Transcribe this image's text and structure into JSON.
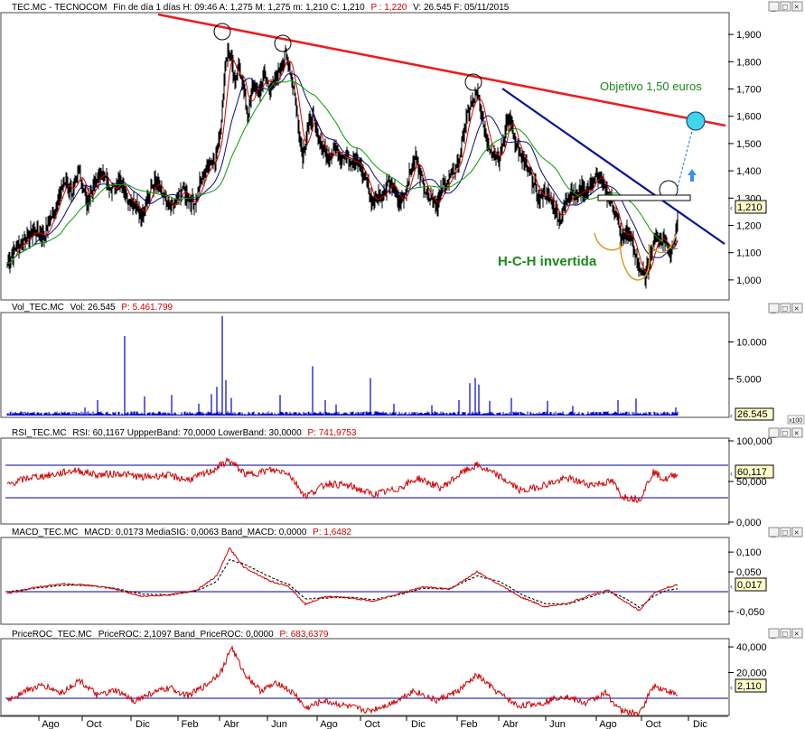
{
  "colors": {
    "background": "#ffffff",
    "price": "#000000",
    "ma_short": "#e00000",
    "ma_mid": "#0a0a80",
    "ma_long": "#00a000",
    "resistance": "#ee1c1c",
    "downtrend": "#0a1496",
    "volume": "#0000cc",
    "indicator": "#d00000",
    "band": "#000099",
    "annotation_green": "#1a8a1a",
    "target_circle": "#3fd5ea",
    "label_box": "#ffffcc",
    "axis_bg": "#ffffff",
    "pattern_shoulders": "#d99a2a"
  },
  "panes": {
    "price": {
      "title_symbol": "TEC.MC",
      "title_name": "TECNOCOM",
      "title_rest": "Fin de día 1 días  H: 09:46  A: 1,275  M: 1,275  m: 1,210  C: 1,210",
      "title_p": "P : 1,220",
      "title_tail": "V: 26.545  F: 05/11/2015",
      "last_value": "1,210",
      "ticks": [
        "1,900",
        "1,800",
        "1,700",
        "1,600",
        "1,500",
        "1,400",
        "1,300",
        "1,200",
        "1,100",
        "1,000"
      ]
    },
    "volume": {
      "title_symbol": "Vol_TEC.MC",
      "title_rest": "Vol: 26.545",
      "title_p": "P: 5.461.799",
      "last_value": "26.545",
      "ticks": [
        "10.000",
        "5.000"
      ],
      "multiplier": "x100"
    },
    "rsi": {
      "title_symbol": "RSI_TEC.MC",
      "title_rest": "RSI: 60,1167  UppperBand: 70,0000  LowerBand: 30,0000",
      "title_p": "P: 741,9753",
      "last_value": "60,117",
      "ticks": [
        "100,000",
        "50,000",
        "0,000"
      ]
    },
    "macd": {
      "title_symbol": "MACD_TEC.MC",
      "title_rest": "MACD: 0,0173  MediaSIG: 0,0063  Band_MACD: 0,0000",
      "title_p": "P: 1,6482",
      "last_value": "0,017",
      "ticks": [
        "0,100",
        "0,050",
        "-0,050"
      ]
    },
    "roc": {
      "title_symbol": "PriceROC_TEC.MC",
      "title_rest": "PriceROC: 2,1097  Band_PriceROC: 0,0000",
      "title_p": "P: 683,6379",
      "last_value": "2,110",
      "ticks": [
        "40,000",
        "20,000"
      ]
    }
  },
  "annotations": {
    "target": "Objetivo 1,50 euros",
    "pattern": "H-C-H invertida"
  },
  "x_axis_labels": [
    "Ago",
    "Oct",
    "Dic",
    "Feb",
    "Abr",
    "Jun",
    "Ago",
    "Oct",
    "Dic",
    "Feb",
    "Abr",
    "Jun",
    "Ago",
    "Oct",
    "Dic"
  ],
  "chart_data": {
    "type": "line",
    "title": "TEC.MC - TECNOCOM",
    "price": {
      "ylim": [
        0.94,
        1.96
      ],
      "close": [
        [
          0,
          1.06
        ],
        [
          10,
          1.12
        ],
        [
          20,
          1.15
        ],
        [
          30,
          1.18
        ],
        [
          40,
          1.16
        ],
        [
          48,
          1.22
        ],
        [
          56,
          1.3
        ],
        [
          64,
          1.36
        ],
        [
          72,
          1.32
        ],
        [
          80,
          1.4
        ],
        [
          88,
          1.28
        ],
        [
          96,
          1.35
        ],
        [
          104,
          1.4
        ],
        [
          110,
          1.36
        ],
        [
          118,
          1.33
        ],
        [
          125,
          1.38
        ],
        [
          133,
          1.3
        ],
        [
          140,
          1.28
        ],
        [
          148,
          1.24
        ],
        [
          155,
          1.3
        ],
        [
          163,
          1.36
        ],
        [
          170,
          1.32
        ],
        [
          178,
          1.26
        ],
        [
          186,
          1.28
        ],
        [
          194,
          1.34
        ],
        [
          200,
          1.3
        ],
        [
          207,
          1.28
        ],
        [
          214,
          1.36
        ],
        [
          222,
          1.42
        ],
        [
          230,
          1.45
        ],
        [
          236,
          1.55
        ],
        [
          240,
          1.74
        ],
        [
          244,
          1.85
        ],
        [
          248,
          1.82
        ],
        [
          252,
          1.7
        ],
        [
          256,
          1.78
        ],
        [
          260,
          1.74
        ],
        [
          266,
          1.6
        ],
        [
          272,
          1.72
        ],
        [
          278,
          1.68
        ],
        [
          284,
          1.76
        ],
        [
          290,
          1.7
        ],
        [
          296,
          1.72
        ],
        [
          302,
          1.78
        ],
        [
          308,
          1.83
        ],
        [
          314,
          1.76
        ],
        [
          318,
          1.68
        ],
        [
          322,
          1.57
        ],
        [
          327,
          1.46
        ],
        [
          332,
          1.55
        ],
        [
          338,
          1.6
        ],
        [
          344,
          1.52
        ],
        [
          350,
          1.48
        ],
        [
          356,
          1.44
        ],
        [
          362,
          1.5
        ],
        [
          368,
          1.45
        ],
        [
          374,
          1.47
        ],
        [
          380,
          1.42
        ],
        [
          386,
          1.44
        ],
        [
          392,
          1.4
        ],
        [
          398,
          1.36
        ],
        [
          404,
          1.28
        ],
        [
          410,
          1.32
        ],
        [
          416,
          1.3
        ],
        [
          422,
          1.36
        ],
        [
          428,
          1.33
        ],
        [
          434,
          1.28
        ],
        [
          440,
          1.32
        ],
        [
          446,
          1.4
        ],
        [
          452,
          1.45
        ],
        [
          458,
          1.38
        ],
        [
          464,
          1.32
        ],
        [
          470,
          1.3
        ],
        [
          476,
          1.28
        ],
        [
          482,
          1.34
        ],
        [
          488,
          1.36
        ],
        [
          494,
          1.4
        ],
        [
          500,
          1.44
        ],
        [
          506,
          1.55
        ],
        [
          510,
          1.62
        ],
        [
          516,
          1.66
        ],
        [
          520,
          1.68
        ],
        [
          524,
          1.62
        ],
        [
          528,
          1.56
        ],
        [
          532,
          1.5
        ],
        [
          538,
          1.47
        ],
        [
          544,
          1.45
        ],
        [
          548,
          1.5
        ],
        [
          552,
          1.56
        ],
        [
          556,
          1.6
        ],
        [
          560,
          1.54
        ],
        [
          566,
          1.47
        ],
        [
          570,
          1.44
        ],
        [
          576,
          1.4
        ],
        [
          582,
          1.36
        ],
        [
          588,
          1.3
        ],
        [
          594,
          1.32
        ],
        [
          600,
          1.3
        ],
        [
          606,
          1.26
        ],
        [
          612,
          1.22
        ],
        [
          618,
          1.28
        ],
        [
          624,
          1.33
        ],
        [
          630,
          1.3
        ],
        [
          636,
          1.34
        ],
        [
          642,
          1.32
        ],
        [
          648,
          1.36
        ],
        [
          654,
          1.38
        ],
        [
          660,
          1.34
        ],
        [
          666,
          1.3
        ],
        [
          672,
          1.26
        ],
        [
          676,
          1.2
        ],
        [
          680,
          1.14
        ],
        [
          684,
          1.18
        ],
        [
          690,
          1.16
        ],
        [
          694,
          1.1
        ],
        [
          698,
          1.06
        ],
        [
          702,
          1.02
        ],
        [
          706,
          1.01
        ],
        [
          710,
          1.06
        ],
        [
          714,
          1.12
        ],
        [
          718,
          1.17
        ],
        [
          722,
          1.14
        ],
        [
          726,
          1.16
        ],
        [
          730,
          1.12
        ],
        [
          734,
          1.1
        ],
        [
          738,
          1.16
        ],
        [
          742,
          1.21
        ]
      ]
    },
    "volume": {
      "ylim": [
        0,
        13500
      ],
      "spikes": [
        [
          86,
          1100
        ],
        [
          100,
          2100
        ],
        [
          130,
          10800
        ],
        [
          152,
          2600
        ],
        [
          182,
          2800
        ],
        [
          212,
          1600
        ],
        [
          226,
          2900
        ],
        [
          232,
          3900
        ],
        [
          238,
          13500
        ],
        [
          242,
          4800
        ],
        [
          248,
          2400
        ],
        [
          302,
          2800
        ],
        [
          338,
          6700
        ],
        [
          352,
          2100
        ],
        [
          364,
          1500
        ],
        [
          402,
          5100
        ],
        [
          428,
          1600
        ],
        [
          470,
          1400
        ],
        [
          500,
          2100
        ],
        [
          512,
          4400
        ],
        [
          518,
          5100
        ],
        [
          522,
          4200
        ],
        [
          534,
          2000
        ],
        [
          558,
          2400
        ],
        [
          598,
          2000
        ],
        [
          626,
          1300
        ],
        [
          676,
          2100
        ],
        [
          696,
          2300
        ],
        [
          740,
          1100
        ]
      ]
    },
    "rsi": {
      "ylim": [
        0,
        100
      ],
      "upper_band": 70,
      "lower_band": 30,
      "values": [
        [
          0,
          46
        ],
        [
          25,
          55
        ],
        [
          50,
          58
        ],
        [
          75,
          64
        ],
        [
          100,
          58
        ],
        [
          125,
          60
        ],
        [
          150,
          55
        ],
        [
          175,
          58
        ],
        [
          200,
          52
        ],
        [
          225,
          62
        ],
        [
          245,
          76
        ],
        [
          265,
          58
        ],
        [
          290,
          64
        ],
        [
          310,
          62
        ],
        [
          330,
          32
        ],
        [
          355,
          48
        ],
        [
          380,
          44
        ],
        [
          405,
          34
        ],
        [
          430,
          40
        ],
        [
          455,
          54
        ],
        [
          480,
          42
        ],
        [
          505,
          62
        ],
        [
          520,
          70
        ],
        [
          545,
          56
        ],
        [
          570,
          38
        ],
        [
          595,
          46
        ],
        [
          620,
          54
        ],
        [
          645,
          46
        ],
        [
          670,
          50
        ],
        [
          680,
          32
        ],
        [
          700,
          28
        ],
        [
          715,
          62
        ],
        [
          728,
          52
        ],
        [
          742,
          60
        ]
      ]
    },
    "macd": {
      "ylim": [
        -0.08,
        0.13
      ],
      "band": 0,
      "macd": [
        [
          0,
          -0.005
        ],
        [
          30,
          0.01
        ],
        [
          60,
          0.02
        ],
        [
          90,
          0.016
        ],
        [
          120,
          0.006
        ],
        [
          150,
          -0.012
        ],
        [
          180,
          -0.008
        ],
        [
          210,
          0.004
        ],
        [
          232,
          0.04
        ],
        [
          246,
          0.11
        ],
        [
          262,
          0.062
        ],
        [
          290,
          0.028
        ],
        [
          312,
          0.012
        ],
        [
          330,
          -0.032
        ],
        [
          352,
          -0.012
        ],
        [
          380,
          -0.016
        ],
        [
          405,
          -0.024
        ],
        [
          430,
          -0.008
        ],
        [
          460,
          0.012
        ],
        [
          490,
          0.006
        ],
        [
          520,
          0.05
        ],
        [
          545,
          0.018
        ],
        [
          570,
          -0.015
        ],
        [
          595,
          -0.038
        ],
        [
          620,
          -0.03
        ],
        [
          650,
          -0.005
        ],
        [
          665,
          0.004
        ],
        [
          680,
          -0.02
        ],
        [
          700,
          -0.048
        ],
        [
          715,
          -0.005
        ],
        [
          730,
          0.01
        ],
        [
          742,
          0.017
        ]
      ],
      "signal": [
        [
          0,
          0
        ],
        [
          30,
          0.008
        ],
        [
          60,
          0.016
        ],
        [
          90,
          0.016
        ],
        [
          120,
          0.008
        ],
        [
          150,
          -0.006
        ],
        [
          180,
          -0.008
        ],
        [
          210,
          0.002
        ],
        [
          232,
          0.026
        ],
        [
          246,
          0.08
        ],
        [
          262,
          0.07
        ],
        [
          290,
          0.038
        ],
        [
          312,
          0.018
        ],
        [
          330,
          -0.018
        ],
        [
          352,
          -0.016
        ],
        [
          380,
          -0.014
        ],
        [
          405,
          -0.02
        ],
        [
          430,
          -0.01
        ],
        [
          460,
          0.008
        ],
        [
          490,
          0.008
        ],
        [
          520,
          0.04
        ],
        [
          545,
          0.026
        ],
        [
          570,
          -0.008
        ],
        [
          595,
          -0.03
        ],
        [
          620,
          -0.032
        ],
        [
          650,
          -0.01
        ],
        [
          665,
          0
        ],
        [
          680,
          -0.012
        ],
        [
          700,
          -0.04
        ],
        [
          715,
          -0.012
        ],
        [
          730,
          0.004
        ],
        [
          742,
          0.0063
        ]
      ]
    },
    "roc": {
      "ylim": [
        -12,
        45
      ],
      "band": 0,
      "values": [
        [
          0,
          -2
        ],
        [
          20,
          6
        ],
        [
          40,
          10
        ],
        [
          60,
          4
        ],
        [
          80,
          14
        ],
        [
          100,
          2
        ],
        [
          120,
          6
        ],
        [
          140,
          -2
        ],
        [
          160,
          4
        ],
        [
          180,
          8
        ],
        [
          200,
          2
        ],
        [
          220,
          10
        ],
        [
          238,
          22
        ],
        [
          248,
          40
        ],
        [
          262,
          20
        ],
        [
          280,
          6
        ],
        [
          300,
          12
        ],
        [
          320,
          2
        ],
        [
          330,
          -8
        ],
        [
          350,
          -2
        ],
        [
          375,
          -6
        ],
        [
          400,
          -10
        ],
        [
          425,
          -4
        ],
        [
          450,
          6
        ],
        [
          475,
          -2
        ],
        [
          500,
          6
        ],
        [
          520,
          18
        ],
        [
          540,
          6
        ],
        [
          565,
          -6
        ],
        [
          590,
          -4
        ],
        [
          615,
          2
        ],
        [
          640,
          -4
        ],
        [
          662,
          4
        ],
        [
          680,
          -10
        ],
        [
          700,
          -12
        ],
        [
          715,
          10
        ],
        [
          730,
          6
        ],
        [
          742,
          2.11
        ]
      ]
    }
  }
}
